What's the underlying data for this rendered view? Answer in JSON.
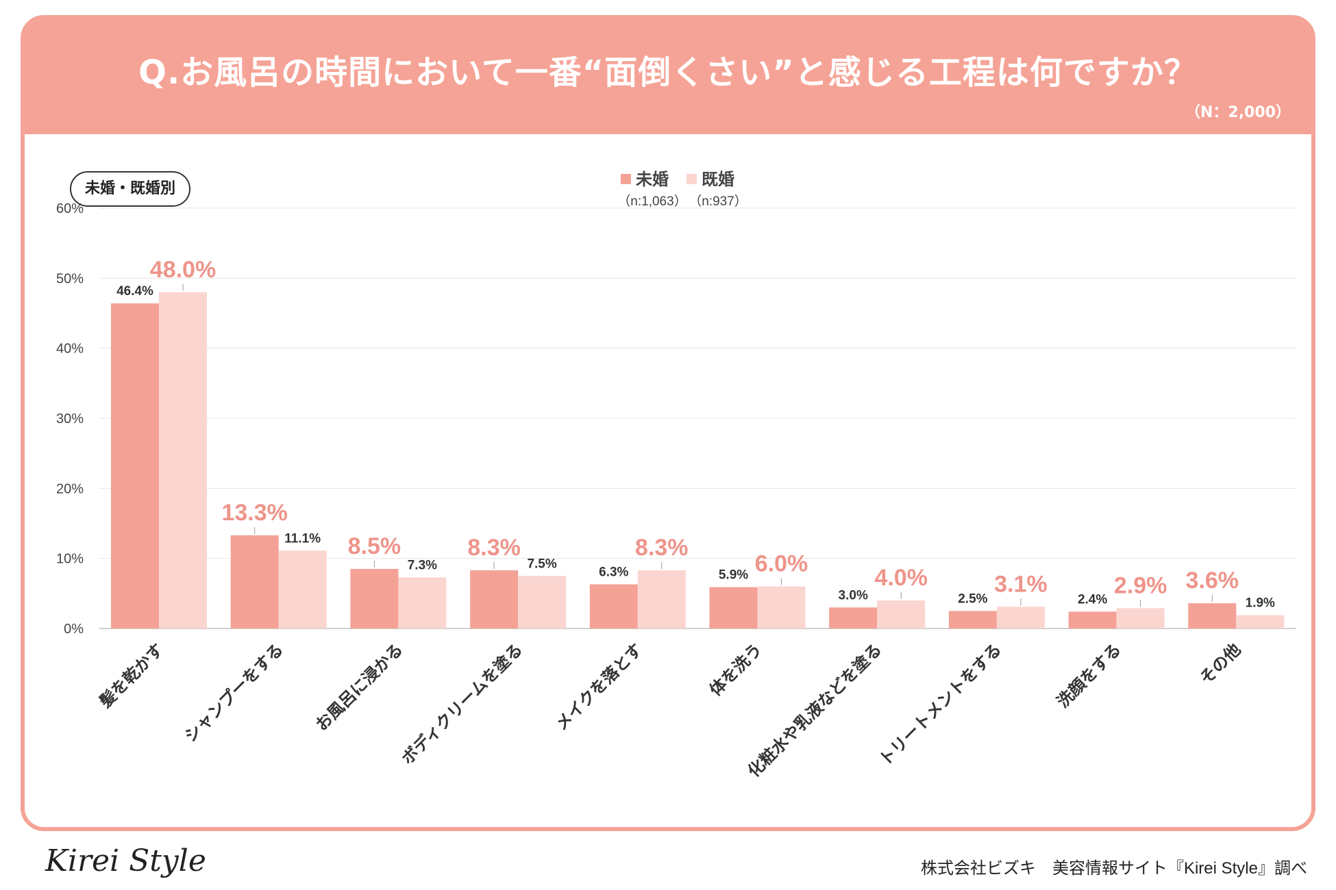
{
  "header": {
    "title": "Q.お風呂の時間において一番“面倒くさい”と感じる工程は何ですか？",
    "sample_size": "（N：2,000）"
  },
  "group_badge": "未婚・既婚別",
  "footer": {
    "logo": "Kirei Style",
    "credit": "株式会社ビズキ　美容情報サイト『Kirei Style』調べ"
  },
  "colors": {
    "accent": "#f5a396",
    "series_unmarried": "#f4a196",
    "series_married": "#fbd5d0",
    "highlight_label": "#ee948a",
    "grid": "#e6e6e6"
  },
  "chart_data": {
    "type": "bar",
    "categories": [
      "髪を乾かす",
      "シャンプーをする",
      "お風呂に浸かる",
      "ボディクリームを塗る",
      "メイクを落とす",
      "体を洗う",
      "化粧水や乳液などを塗る",
      "トリートメントをする",
      "洗顔をする",
      "その他"
    ],
    "series": [
      {
        "name": "未婚",
        "n_label": "（n:1,063）",
        "values": [
          46.4,
          13.3,
          8.5,
          8.3,
          6.3,
          5.9,
          3.0,
          2.5,
          2.4,
          3.6
        ],
        "labels": [
          "46.4%",
          "13.3%",
          "8.5%",
          "8.3%",
          "6.3%",
          "5.9%",
          "3.0%",
          "2.5%",
          "2.4%",
          "3.6%"
        ],
        "highlight": [
          false,
          true,
          true,
          true,
          false,
          false,
          false,
          false,
          false,
          true
        ]
      },
      {
        "name": "既婚",
        "n_label": "（n:937）",
        "values": [
          48.0,
          11.1,
          7.3,
          7.5,
          8.3,
          6.0,
          4.0,
          3.1,
          2.9,
          1.9
        ],
        "labels": [
          "48.0%",
          "11.1%",
          "7.3%",
          "7.5%",
          "8.3%",
          "6.0%",
          "4.0%",
          "3.1%",
          "2.9%",
          "1.9%"
        ],
        "highlight": [
          true,
          false,
          false,
          false,
          true,
          true,
          true,
          true,
          true,
          false
        ]
      }
    ],
    "ylim": [
      0,
      60
    ],
    "yticks": [
      0,
      10,
      20,
      30,
      40,
      50,
      60
    ],
    "ytick_labels": [
      "0%",
      "10%",
      "20%",
      "30%",
      "40%",
      "50%",
      "60%"
    ],
    "grid": true,
    "legend_position": "top-center",
    "xlabel": "",
    "ylabel": ""
  }
}
